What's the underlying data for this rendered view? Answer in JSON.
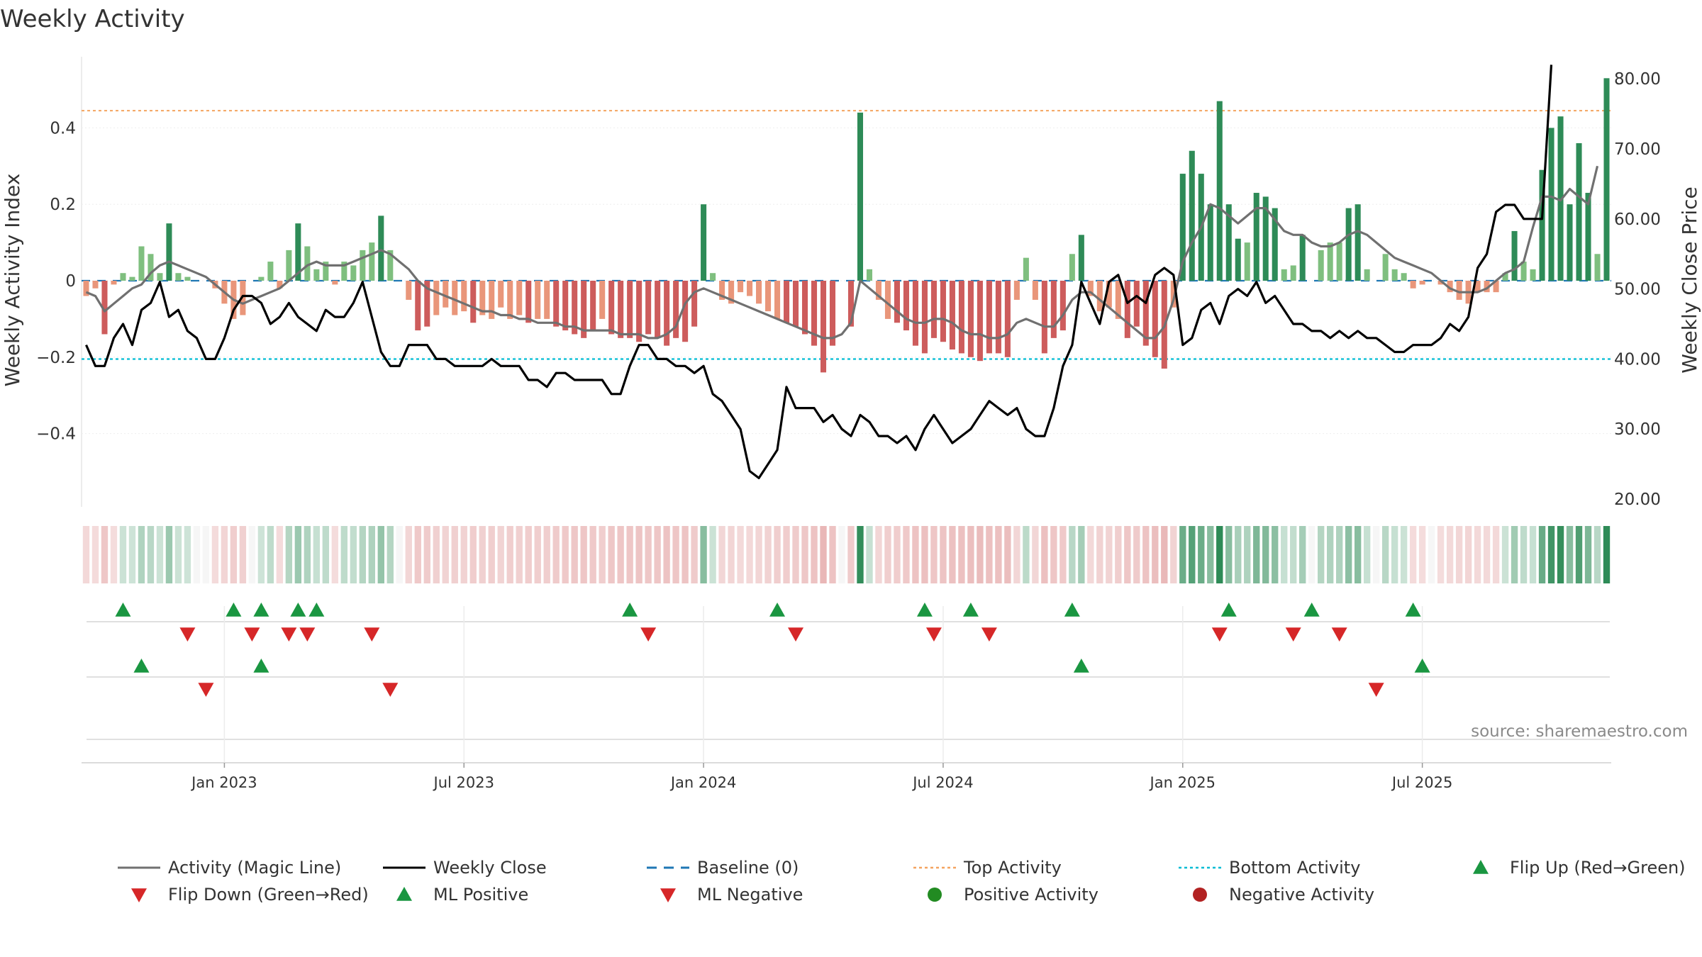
{
  "title": "Weekly Activity",
  "source": "source: sharemaestro.com",
  "colors": {
    "strong_green": "#2e8b57",
    "light_green": "#7fbf7f",
    "strong_red": "#cd5c5c",
    "light_red": "#e9967a",
    "magic_line": "#707070",
    "close_line": "#000000",
    "baseline": "#1f77b4",
    "top_line": "#f4a460",
    "bottom_line": "#00bcd4",
    "marker_up": "#1a9641",
    "marker_down": "#d62728",
    "pos_dot": "#228b22",
    "neg_dot": "#b22222"
  },
  "chart_data": {
    "type": "bar+line",
    "title": "Weekly Activity",
    "ylabel": "Weekly Activity Index",
    "y2label": "Weekly Close Price",
    "ylim": [
      -0.6,
      0.6
    ],
    "y2lim": [
      20,
      84
    ],
    "yticks": [
      "0.4",
      "0.2",
      "0",
      "−0.2",
      "−0.4"
    ],
    "yticks_values": [
      0.4,
      0.2,
      0,
      -0.2,
      -0.4
    ],
    "y2ticks": [
      "80.00",
      "70.00",
      "60.00",
      "50.00",
      "40.00",
      "30.00",
      "20.00"
    ],
    "y2ticks_values": [
      80,
      70,
      60,
      50,
      40,
      30,
      20
    ],
    "xticks": [
      "Jan 2023",
      "Jul 2023",
      "Jan 2024",
      "Jul 2024",
      "Jan 2025",
      "Jul 2025"
    ],
    "xticks_week_index": [
      15,
      41,
      67,
      93,
      119,
      145
    ],
    "top_activity": 0.445,
    "bottom_activity": -0.205,
    "activity_values": [
      -0.04,
      -0.02,
      -0.14,
      -0.01,
      0.02,
      0.01,
      0.09,
      0.07,
      0.02,
      0.15,
      0.02,
      0.01,
      0.0,
      0.0,
      -0.02,
      -0.06,
      -0.1,
      -0.09,
      0.0,
      0.01,
      0.05,
      -0.02,
      0.08,
      0.15,
      0.09,
      0.03,
      0.05,
      -0.01,
      0.05,
      0.04,
      0.08,
      0.1,
      0.17,
      0.08,
      0.0,
      -0.05,
      -0.13,
      -0.12,
      -0.09,
      -0.07,
      -0.09,
      -0.08,
      -0.11,
      -0.09,
      -0.1,
      -0.07,
      -0.1,
      -0.09,
      -0.11,
      -0.1,
      -0.1,
      -0.12,
      -0.13,
      -0.14,
      -0.15,
      -0.13,
      -0.1,
      -0.14,
      -0.15,
      -0.15,
      -0.16,
      -0.14,
      -0.15,
      -0.17,
      -0.15,
      -0.16,
      -0.12,
      0.2,
      0.02,
      -0.05,
      -0.06,
      -0.03,
      -0.04,
      -0.06,
      -0.08,
      -0.1,
      -0.11,
      -0.12,
      -0.14,
      -0.17,
      -0.24,
      -0.17,
      0.0,
      -0.12,
      0.44,
      0.03,
      -0.05,
      -0.1,
      -0.11,
      -0.13,
      -0.17,
      -0.19,
      -0.15,
      -0.16,
      -0.18,
      -0.19,
      -0.2,
      -0.21,
      -0.19,
      -0.19,
      -0.2,
      -0.05,
      0.06,
      -0.05,
      -0.19,
      -0.15,
      -0.13,
      0.07,
      0.12,
      -0.04,
      -0.08,
      -0.07,
      -0.1,
      -0.15,
      -0.12,
      -0.17,
      -0.2,
      -0.23,
      -0.07,
      0.28,
      0.34,
      0.28,
      0.2,
      0.47,
      0.2,
      0.11,
      0.1,
      0.23,
      0.22,
      0.19,
      0.03,
      0.04,
      0.12,
      0.0,
      0.08,
      0.1,
      0.1,
      0.19,
      0.2,
      0.03,
      0.0,
      0.07,
      0.03,
      0.02,
      -0.02,
      -0.01,
      0.0,
      -0.01,
      -0.03,
      -0.05,
      -0.06,
      -0.03,
      -0.03,
      -0.03,
      0.02,
      0.13,
      0.05,
      0.03,
      0.29,
      0.4,
      0.43,
      0.2,
      0.36,
      0.23,
      0.07,
      0.53
    ],
    "magic_line": [
      -0.03,
      -0.04,
      -0.08,
      -0.06,
      -0.04,
      -0.02,
      -0.01,
      0.02,
      0.04,
      0.05,
      0.04,
      0.03,
      0.02,
      0.01,
      -0.01,
      -0.03,
      -0.05,
      -0.06,
      -0.05,
      -0.04,
      -0.03,
      -0.02,
      0.0,
      0.02,
      0.04,
      0.05,
      0.04,
      0.04,
      0.04,
      0.05,
      0.06,
      0.07,
      0.08,
      0.07,
      0.05,
      0.03,
      0.0,
      -0.02,
      -0.03,
      -0.04,
      -0.05,
      -0.06,
      -0.07,
      -0.08,
      -0.08,
      -0.09,
      -0.09,
      -0.1,
      -0.1,
      -0.11,
      -0.11,
      -0.11,
      -0.12,
      -0.12,
      -0.13,
      -0.13,
      -0.13,
      -0.13,
      -0.14,
      -0.14,
      -0.14,
      -0.15,
      -0.15,
      -0.14,
      -0.12,
      -0.06,
      -0.03,
      -0.02,
      -0.03,
      -0.04,
      -0.05,
      -0.06,
      -0.07,
      -0.08,
      -0.09,
      -0.1,
      -0.11,
      -0.12,
      -0.13,
      -0.14,
      -0.15,
      -0.15,
      -0.14,
      -0.11,
      0.0,
      -0.02,
      -0.04,
      -0.06,
      -0.08,
      -0.1,
      -0.11,
      -0.11,
      -0.1,
      -0.1,
      -0.11,
      -0.13,
      -0.14,
      -0.14,
      -0.15,
      -0.15,
      -0.14,
      -0.11,
      -0.1,
      -0.11,
      -0.12,
      -0.12,
      -0.09,
      -0.05,
      -0.03,
      -0.03,
      -0.05,
      -0.07,
      -0.09,
      -0.11,
      -0.13,
      -0.15,
      -0.15,
      -0.12,
      -0.05,
      0.05,
      0.1,
      0.14,
      0.2,
      0.19,
      0.17,
      0.15,
      0.17,
      0.19,
      0.19,
      0.16,
      0.13,
      0.12,
      0.12,
      0.1,
      0.09,
      0.09,
      0.1,
      0.12,
      0.13,
      0.12,
      0.1,
      0.08,
      0.06,
      0.05,
      0.04,
      0.03,
      0.02,
      0.0,
      -0.02,
      -0.03,
      -0.03,
      -0.03,
      -0.02,
      0.0,
      0.02,
      0.03,
      0.05,
      0.14,
      0.22,
      0.22,
      0.21,
      0.24,
      0.22,
      0.2,
      0.3
    ],
    "weekly_close": [
      42,
      39,
      39,
      43,
      45,
      42,
      47,
      48,
      51,
      46,
      47,
      44,
      43,
      40,
      40,
      43,
      47,
      49,
      49,
      48,
      45,
      46,
      48,
      46,
      45,
      44,
      47,
      46,
      46,
      48,
      51,
      46,
      41,
      39,
      39,
      42,
      42,
      42,
      40,
      40,
      39,
      39,
      39,
      39,
      40,
      39,
      39,
      39,
      37,
      37,
      36,
      38,
      38,
      37,
      37,
      37,
      37,
      35,
      35,
      39,
      42,
      42,
      40,
      40,
      39,
      39,
      38,
      39,
      35,
      34,
      32,
      30,
      24,
      23,
      25,
      27,
      36,
      33,
      33,
      33,
      31,
      32,
      30,
      29,
      32,
      31,
      29,
      29,
      28,
      29,
      27,
      30,
      32,
      30,
      28,
      29,
      30,
      32,
      34,
      33,
      32,
      33,
      30,
      29,
      29,
      33,
      39,
      42,
      51,
      48,
      45,
      51,
      52,
      48,
      49,
      48,
      52,
      53,
      52,
      42,
      43,
      47,
      48,
      45,
      49,
      50,
      49,
      51,
      48,
      49,
      47,
      45,
      45,
      44,
      44,
      43,
      44,
      43,
      44,
      43,
      43,
      42,
      41,
      41,
      42,
      42,
      42,
      43,
      45,
      44,
      46,
      53,
      55,
      61,
      62,
      62,
      60,
      60,
      60,
      82
    ],
    "flip_up": [
      4,
      16,
      19,
      23,
      25,
      59,
      75,
      91,
      96,
      107,
      124,
      133,
      144
    ],
    "flip_down": [
      11,
      18,
      22,
      24,
      31,
      61,
      77,
      92,
      98,
      123,
      131,
      136
    ],
    "ml_positive": [
      6,
      19,
      108,
      145
    ],
    "ml_negative": [
      13,
      33,
      140
    ],
    "legend": [
      {
        "key": "magic",
        "label": "Activity (Magic Line)"
      },
      {
        "key": "close",
        "label": "Weekly Close"
      },
      {
        "key": "baseline",
        "label": "Baseline (0)"
      },
      {
        "key": "top",
        "label": "Top Activity"
      },
      {
        "key": "bottom",
        "label": "Bottom Activity"
      },
      {
        "key": "flipup",
        "label": "Flip Up (Red→Green)"
      },
      {
        "key": "flipdown",
        "label": "Flip Down (Green→Red)"
      },
      {
        "key": "mlpos",
        "label": "ML Positive"
      },
      {
        "key": "mlneg",
        "label": "ML Negative"
      },
      {
        "key": "posact",
        "label": "Positive Activity"
      },
      {
        "key": "negact",
        "label": "Negative Activity"
      }
    ]
  }
}
